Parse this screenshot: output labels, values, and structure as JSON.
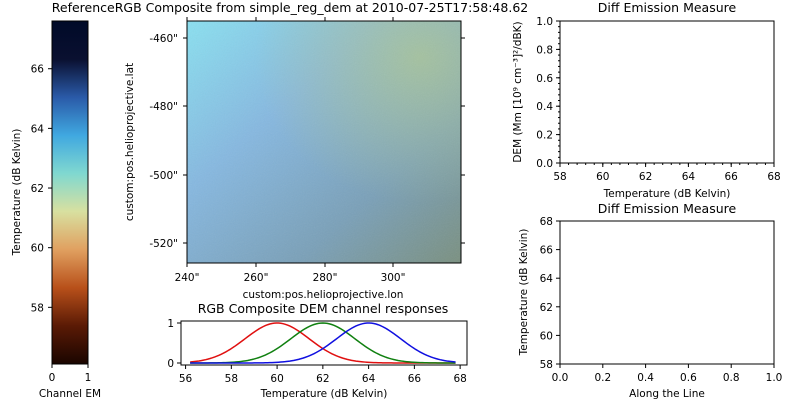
{
  "main_title": "ReferenceRGB Composite from simple_reg_dem at 2010-07-25T17:58:48.62",
  "colorbar": {
    "ylabel": "Temperature (dB Kelvin)",
    "xlabel": "Channel EM",
    "yticks": [
      "58",
      "60",
      "62",
      "64",
      "66"
    ],
    "xticks": [
      "0",
      "1"
    ],
    "ylim": [
      56.1,
      67.6
    ],
    "colors": [
      "#1a0500",
      "#5a1a05",
      "#b8501a",
      "#e0a060",
      "#d8e0a0",
      "#80d8d0",
      "#40a8e0",
      "#2a5aa8",
      "#0a1030",
      "#000a28"
    ]
  },
  "image_panel": {
    "xlabel": "custom:pos.helioprojective.lon",
    "ylabel": "custom:pos.helioprojective.lat",
    "xticks": [
      "240\"",
      "260\"",
      "280\"",
      "300\""
    ],
    "yticks": [
      "-460\"",
      "-480\"",
      "-500\"",
      "-520\""
    ]
  },
  "dem_panel": {
    "title": "Diff Emission Measure",
    "ylabel": "DEM (Mm [10⁹ cm⁻³]²/dBK)",
    "xlabel": "Temperature (dB Kelvin)",
    "xticks": [
      "58",
      "60",
      "62",
      "64",
      "66",
      "68"
    ],
    "yticks": [
      "0.0",
      "0.2",
      "0.4",
      "0.6",
      "0.8",
      "1.0"
    ]
  },
  "line_panel": {
    "title": "Diff Emission Measure",
    "ylabel": "Temperature (dB Kelvin)",
    "xlabel": "Along the Line",
    "xticks": [
      "0.0",
      "0.2",
      "0.4",
      "0.6",
      "0.8",
      "1.0"
    ],
    "yticks": [
      "58",
      "60",
      "62",
      "64",
      "66",
      "68"
    ]
  },
  "chart_data": {
    "type": "line",
    "title": "RGB Composite DEM channel responses",
    "xlabel": "Temperature (dB Kelvin)",
    "ylabel": "",
    "xlim": [
      55.8,
      68.3
    ],
    "ylim": [
      -0.05,
      1.05
    ],
    "xticks": [
      "56",
      "58",
      "60",
      "62",
      "64",
      "66",
      "68"
    ],
    "yticks": [
      "0",
      "1"
    ],
    "series": [
      {
        "color": "#e01010",
        "center": 60,
        "sigma": 1.4,
        "x_range": [
          56.2,
          67.8
        ]
      },
      {
        "color": "#108010",
        "center": 62,
        "sigma": 1.4,
        "x_range": [
          56.2,
          67.8
        ]
      },
      {
        "color": "#1010e0",
        "center": 64,
        "sigma": 1.4,
        "x_range": [
          56.2,
          67.8
        ]
      }
    ]
  }
}
